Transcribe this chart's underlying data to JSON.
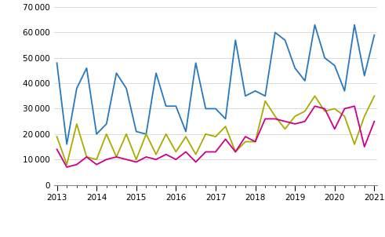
{
  "job_vacancies": [
    48000,
    16000,
    38000,
    46000,
    20000,
    24000,
    44000,
    38000,
    21000,
    20000,
    44000,
    31000,
    31000,
    21000,
    48000,
    30000,
    30000,
    26000,
    57000,
    35000,
    37000,
    35000,
    60000,
    57000,
    46000,
    41000,
    63000,
    50000,
    47000,
    37000,
    63000,
    43000,
    59000
  ],
  "unoccupied_vacancies": [
    19000,
    8000,
    24000,
    11000,
    10000,
    20000,
    11000,
    20000,
    10000,
    20000,
    12000,
    20000,
    13000,
    19000,
    12000,
    20000,
    19000,
    23000,
    13000,
    17000,
    17000,
    33000,
    27000,
    22000,
    27000,
    29000,
    35000,
    29000,
    30000,
    27000,
    16000,
    27000,
    35000
  ],
  "hard_to_fill": [
    14000,
    7000,
    8000,
    11000,
    8000,
    10000,
    11000,
    10000,
    9000,
    11000,
    10000,
    12000,
    10000,
    13000,
    9000,
    13000,
    13000,
    18000,
    13000,
    19000,
    17000,
    26000,
    26000,
    25000,
    24000,
    25000,
    31000,
    30000,
    22000,
    30000,
    31000,
    15000,
    25000
  ],
  "x_labels": [
    "2013",
    "2014",
    "2015",
    "2016",
    "2017",
    "2018",
    "2019",
    "2020",
    "2021"
  ],
  "x_ticks_major": [
    0,
    4,
    8,
    12,
    16,
    20,
    24,
    28,
    32
  ],
  "ylim": [
    0,
    70000
  ],
  "yticks": [
    0,
    10000,
    20000,
    30000,
    40000,
    50000,
    60000,
    70000
  ],
  "color_job": "#2878BE",
  "color_unoccupied": "#AAAA00",
  "color_hard": "#CC0088",
  "background_color": "#FFFFFF",
  "grid_color": "#CCCCCC"
}
